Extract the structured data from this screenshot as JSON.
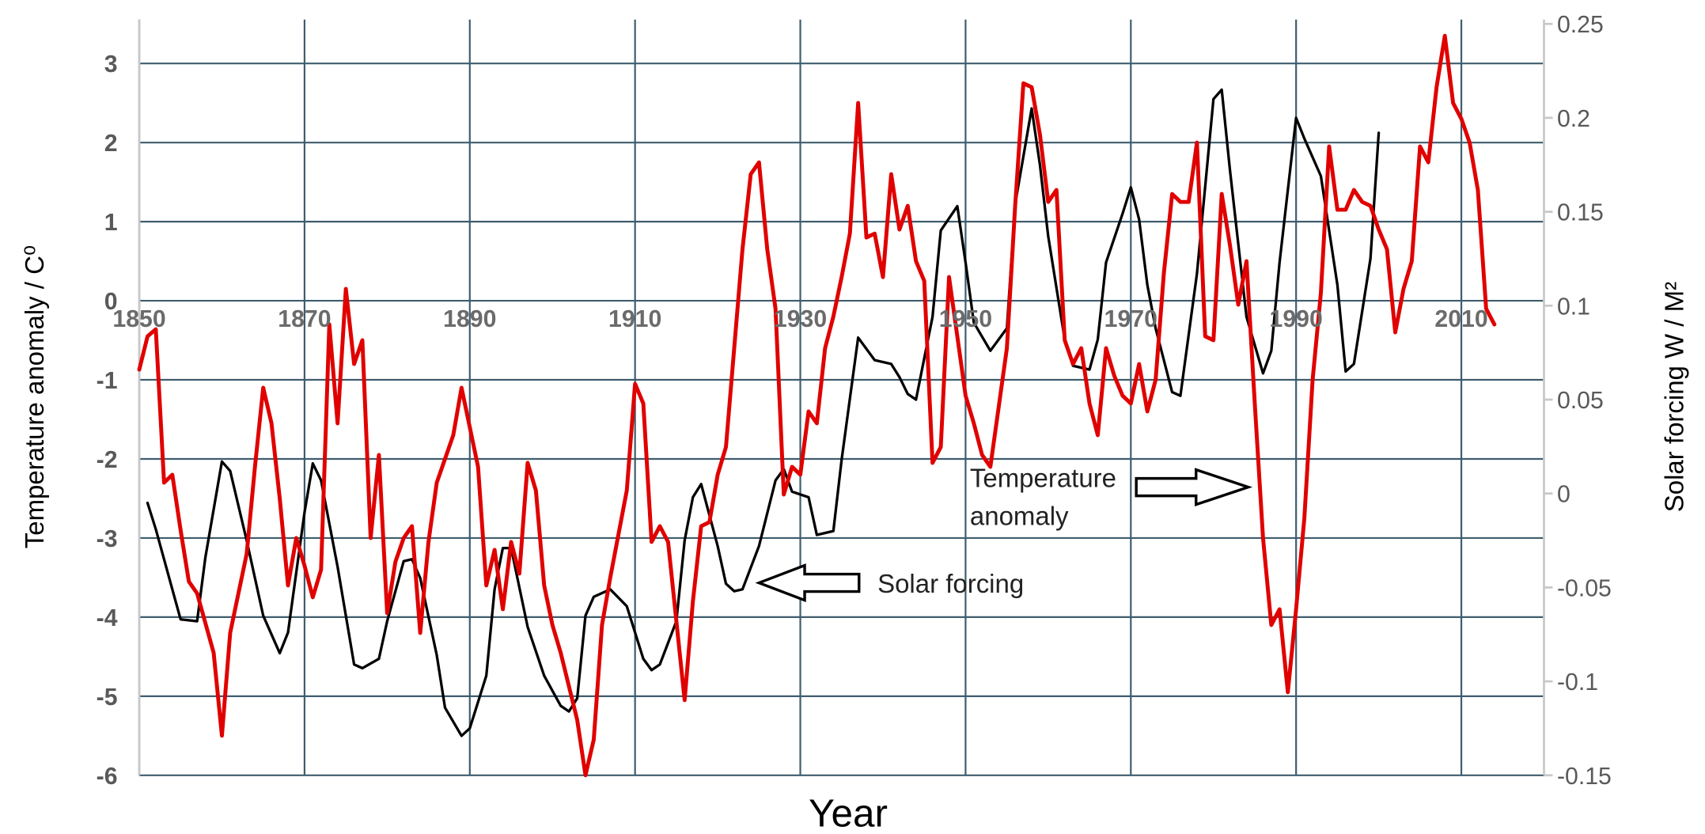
{
  "chart_data": {
    "type": "line",
    "xlabel": "Year",
    "ylabel": "Temperature anomaly / C⁰",
    "y2label": "Solar forcing W / M²",
    "xlim": [
      1850,
      2020
    ],
    "xticks": [
      1850,
      1870,
      1890,
      1910,
      1930,
      1950,
      1970,
      1990,
      2010
    ],
    "ylim": [
      -6,
      3.5
    ],
    "yticks": [
      -6,
      -5,
      -4,
      -3,
      -2,
      -1,
      0,
      1,
      2,
      3
    ],
    "y2lim": [
      -0.15,
      0.25
    ],
    "y2ticks": [
      -0.15,
      -0.1,
      -0.05,
      0,
      0.05,
      0.1,
      0.15,
      0.2,
      0.25
    ],
    "grid": true,
    "annotations": [
      {
        "lines": [
          "Temperature",
          "anomaly"
        ]
      },
      {
        "lines": [
          "Solar forcing"
        ]
      }
    ],
    "series": [
      {
        "color": "#e00000",
        "axis": "y",
        "x": [
          1850,
          1851,
          1852,
          1853,
          1854,
          1855,
          1856,
          1857,
          1859,
          1860,
          1861,
          1863,
          1864,
          1865,
          1866,
          1867,
          1868,
          1869,
          1870,
          1871,
          1872,
          1873,
          1874,
          1875,
          1876,
          1877,
          1878,
          1879,
          1880,
          1881,
          1882,
          1883,
          1884,
          1885,
          1886,
          1888,
          1889,
          1890,
          1891,
          1892,
          1893,
          1894,
          1895,
          1896,
          1897,
          1898,
          1899,
          1900,
          1901,
          1903,
          1904,
          1905,
          1906,
          1907,
          1909,
          1910,
          1911,
          1912,
          1913,
          1914,
          1915,
          1916,
          1917,
          1918,
          1919,
          1920,
          1921,
          1922,
          1923,
          1924,
          1925,
          1926,
          1927,
          1928,
          1929,
          1930,
          1931,
          1932,
          1933,
          1934,
          1935,
          1936,
          1937,
          1938,
          1939,
          1940,
          1941,
          1942,
          1943,
          1944,
          1945,
          1946,
          1947,
          1948,
          1949,
          1950,
          1951,
          1952,
          1953,
          1954,
          1955,
          1956,
          1957,
          1958,
          1959,
          1960,
          1961,
          1962,
          1963,
          1964,
          1965,
          1966,
          1967,
          1968,
          1969,
          1970,
          1971,
          1972,
          1973,
          1974,
          1975,
          1976,
          1977,
          1978,
          1979,
          1980,
          1981,
          1982,
          1983,
          1984,
          1985,
          1986,
          1987,
          1988,
          1989,
          1990,
          1991,
          1992,
          1993,
          1994,
          1995,
          1996,
          1997,
          1998,
          1999,
          2000,
          2001,
          2002,
          2003,
          2004,
          2005,
          2006,
          2007,
          2008,
          2009,
          2010,
          2011,
          2012,
          2013,
          2014
        ],
        "values": [
          -0.87,
          -0.45,
          -0.36,
          -2.3,
          -2.2,
          -2.9,
          -3.55,
          -3.7,
          -4.45,
          -5.5,
          -4.2,
          -3.2,
          -2.1,
          -1.1,
          -1.55,
          -2.5,
          -3.6,
          -3.0,
          -3.35,
          -3.75,
          -3.4,
          -0.3,
          -1.55,
          0.15,
          -0.8,
          -0.5,
          -3.0,
          -1.95,
          -3.95,
          -3.3,
          -3.0,
          -2.85,
          -4.2,
          -3.05,
          -2.3,
          -1.7,
          -1.1,
          -1.6,
          -2.1,
          -3.6,
          -3.15,
          -3.9,
          -3.05,
          -3.45,
          -2.05,
          -2.4,
          -3.6,
          -4.1,
          -4.45,
          -5.3,
          -6.0,
          -5.55,
          -4.1,
          -3.5,
          -2.4,
          -1.05,
          -1.3,
          -3.05,
          -2.85,
          -3.05,
          -4.05,
          -5.05,
          -3.8,
          -2.85,
          -2.8,
          -2.2,
          -1.85,
          -0.6,
          0.65,
          1.6,
          1.75,
          0.65,
          -0.1,
          -2.45,
          -2.1,
          -2.2,
          -1.4,
          -1.55,
          -0.6,
          -0.2,
          0.3,
          0.85,
          2.5,
          0.8,
          0.85,
          0.3,
          1.6,
          0.9,
          1.2,
          0.5,
          0.25,
          -2.05,
          -1.85,
          0.3,
          -0.45,
          -1.2,
          -1.55,
          -1.95,
          -2.1,
          -1.35,
          -0.6,
          1.2,
          2.75,
          2.7,
          2.1,
          1.25,
          1.4,
          -0.5,
          -0.8,
          -0.6,
          -1.3,
          -1.7,
          -0.6,
          -0.95,
          -1.2,
          -1.3,
          -0.8,
          -1.4,
          -1.0,
          0.35,
          1.35,
          1.25,
          1.25,
          2.0,
          -0.45,
          -0.5,
          1.35,
          0.7,
          -0.05,
          0.5,
          -1.3,
          -3.0,
          -4.1,
          -3.9,
          -4.95,
          -3.9,
          -2.75,
          -1.0,
          0.1,
          1.95,
          1.15,
          1.15,
          1.4,
          1.25,
          1.2,
          0.9,
          0.65,
          -0.4,
          0.15,
          0.5,
          1.95,
          1.75,
          2.7,
          3.35,
          2.5,
          2.3,
          2.0,
          1.4,
          -0.1,
          -0.3
        ]
      },
      {
        "color": "#000000",
        "axis": "y2",
        "x": [
          1851,
          1852,
          1854,
          1855,
          1857,
          1858,
          1860,
          1861,
          1863,
          1865,
          1867,
          1868,
          1870,
          1871,
          1872,
          1874,
          1876,
          1877,
          1879,
          1880,
          1882,
          1883,
          1884,
          1886,
          1887,
          1889,
          1890,
          1892,
          1893,
          1894,
          1895,
          1897,
          1899,
          1901,
          1902,
          1903,
          1904,
          1905,
          1907,
          1909,
          1911,
          1912,
          1913,
          1915,
          1916,
          1917,
          1918,
          1920,
          1921,
          1922,
          1923,
          1925,
          1927,
          1928,
          1929,
          1931,
          1932,
          1934,
          1935,
          1937,
          1939,
          1941,
          1942,
          1943,
          1944,
          1946,
          1947,
          1949,
          1950,
          1951,
          1953,
          1955,
          1956,
          1958,
          1959,
          1960,
          1962,
          1963,
          1965,
          1966,
          1967,
          1969,
          1970,
          1971,
          1972,
          1973,
          1975,
          1976,
          1978,
          1980,
          1981,
          1982,
          1984,
          1986,
          1987,
          1988,
          1990,
          1991,
          1993,
          1995,
          1996,
          1997,
          1999,
          2000
        ],
        "values": [
          -0.005,
          -0.019,
          -0.051,
          -0.067,
          -0.068,
          -0.034,
          0.017,
          0.012,
          -0.025,
          -0.065,
          -0.085,
          -0.074,
          -0.01,
          0.016,
          0.007,
          -0.039,
          -0.091,
          -0.093,
          -0.088,
          -0.068,
          -0.036,
          -0.035,
          -0.045,
          -0.086,
          -0.114,
          -0.129,
          -0.125,
          -0.097,
          -0.051,
          -0.029,
          -0.029,
          -0.071,
          -0.097,
          -0.113,
          -0.116,
          -0.109,
          -0.065,
          -0.055,
          -0.051,
          -0.06,
          -0.088,
          -0.094,
          -0.091,
          -0.068,
          -0.025,
          -0.002,
          0.005,
          -0.028,
          -0.048,
          -0.052,
          -0.051,
          -0.028,
          0.007,
          0.013,
          0.001,
          -0.002,
          -0.022,
          -0.02,
          0.018,
          0.083,
          0.071,
          0.069,
          0.062,
          0.053,
          0.05,
          0.094,
          0.14,
          0.153,
          0.123,
          0.091,
          0.076,
          0.088,
          0.154,
          0.205,
          0.175,
          0.137,
          0.082,
          0.068,
          0.066,
          0.082,
          0.123,
          0.149,
          0.163,
          0.146,
          0.111,
          0.088,
          0.054,
          0.052,
          0.117,
          0.21,
          0.215,
          0.172,
          0.094,
          0.064,
          0.076,
          0.123,
          0.2,
          0.189,
          0.169,
          0.111,
          0.065,
          0.069,
          0.125,
          0.192
        ]
      }
    ]
  }
}
